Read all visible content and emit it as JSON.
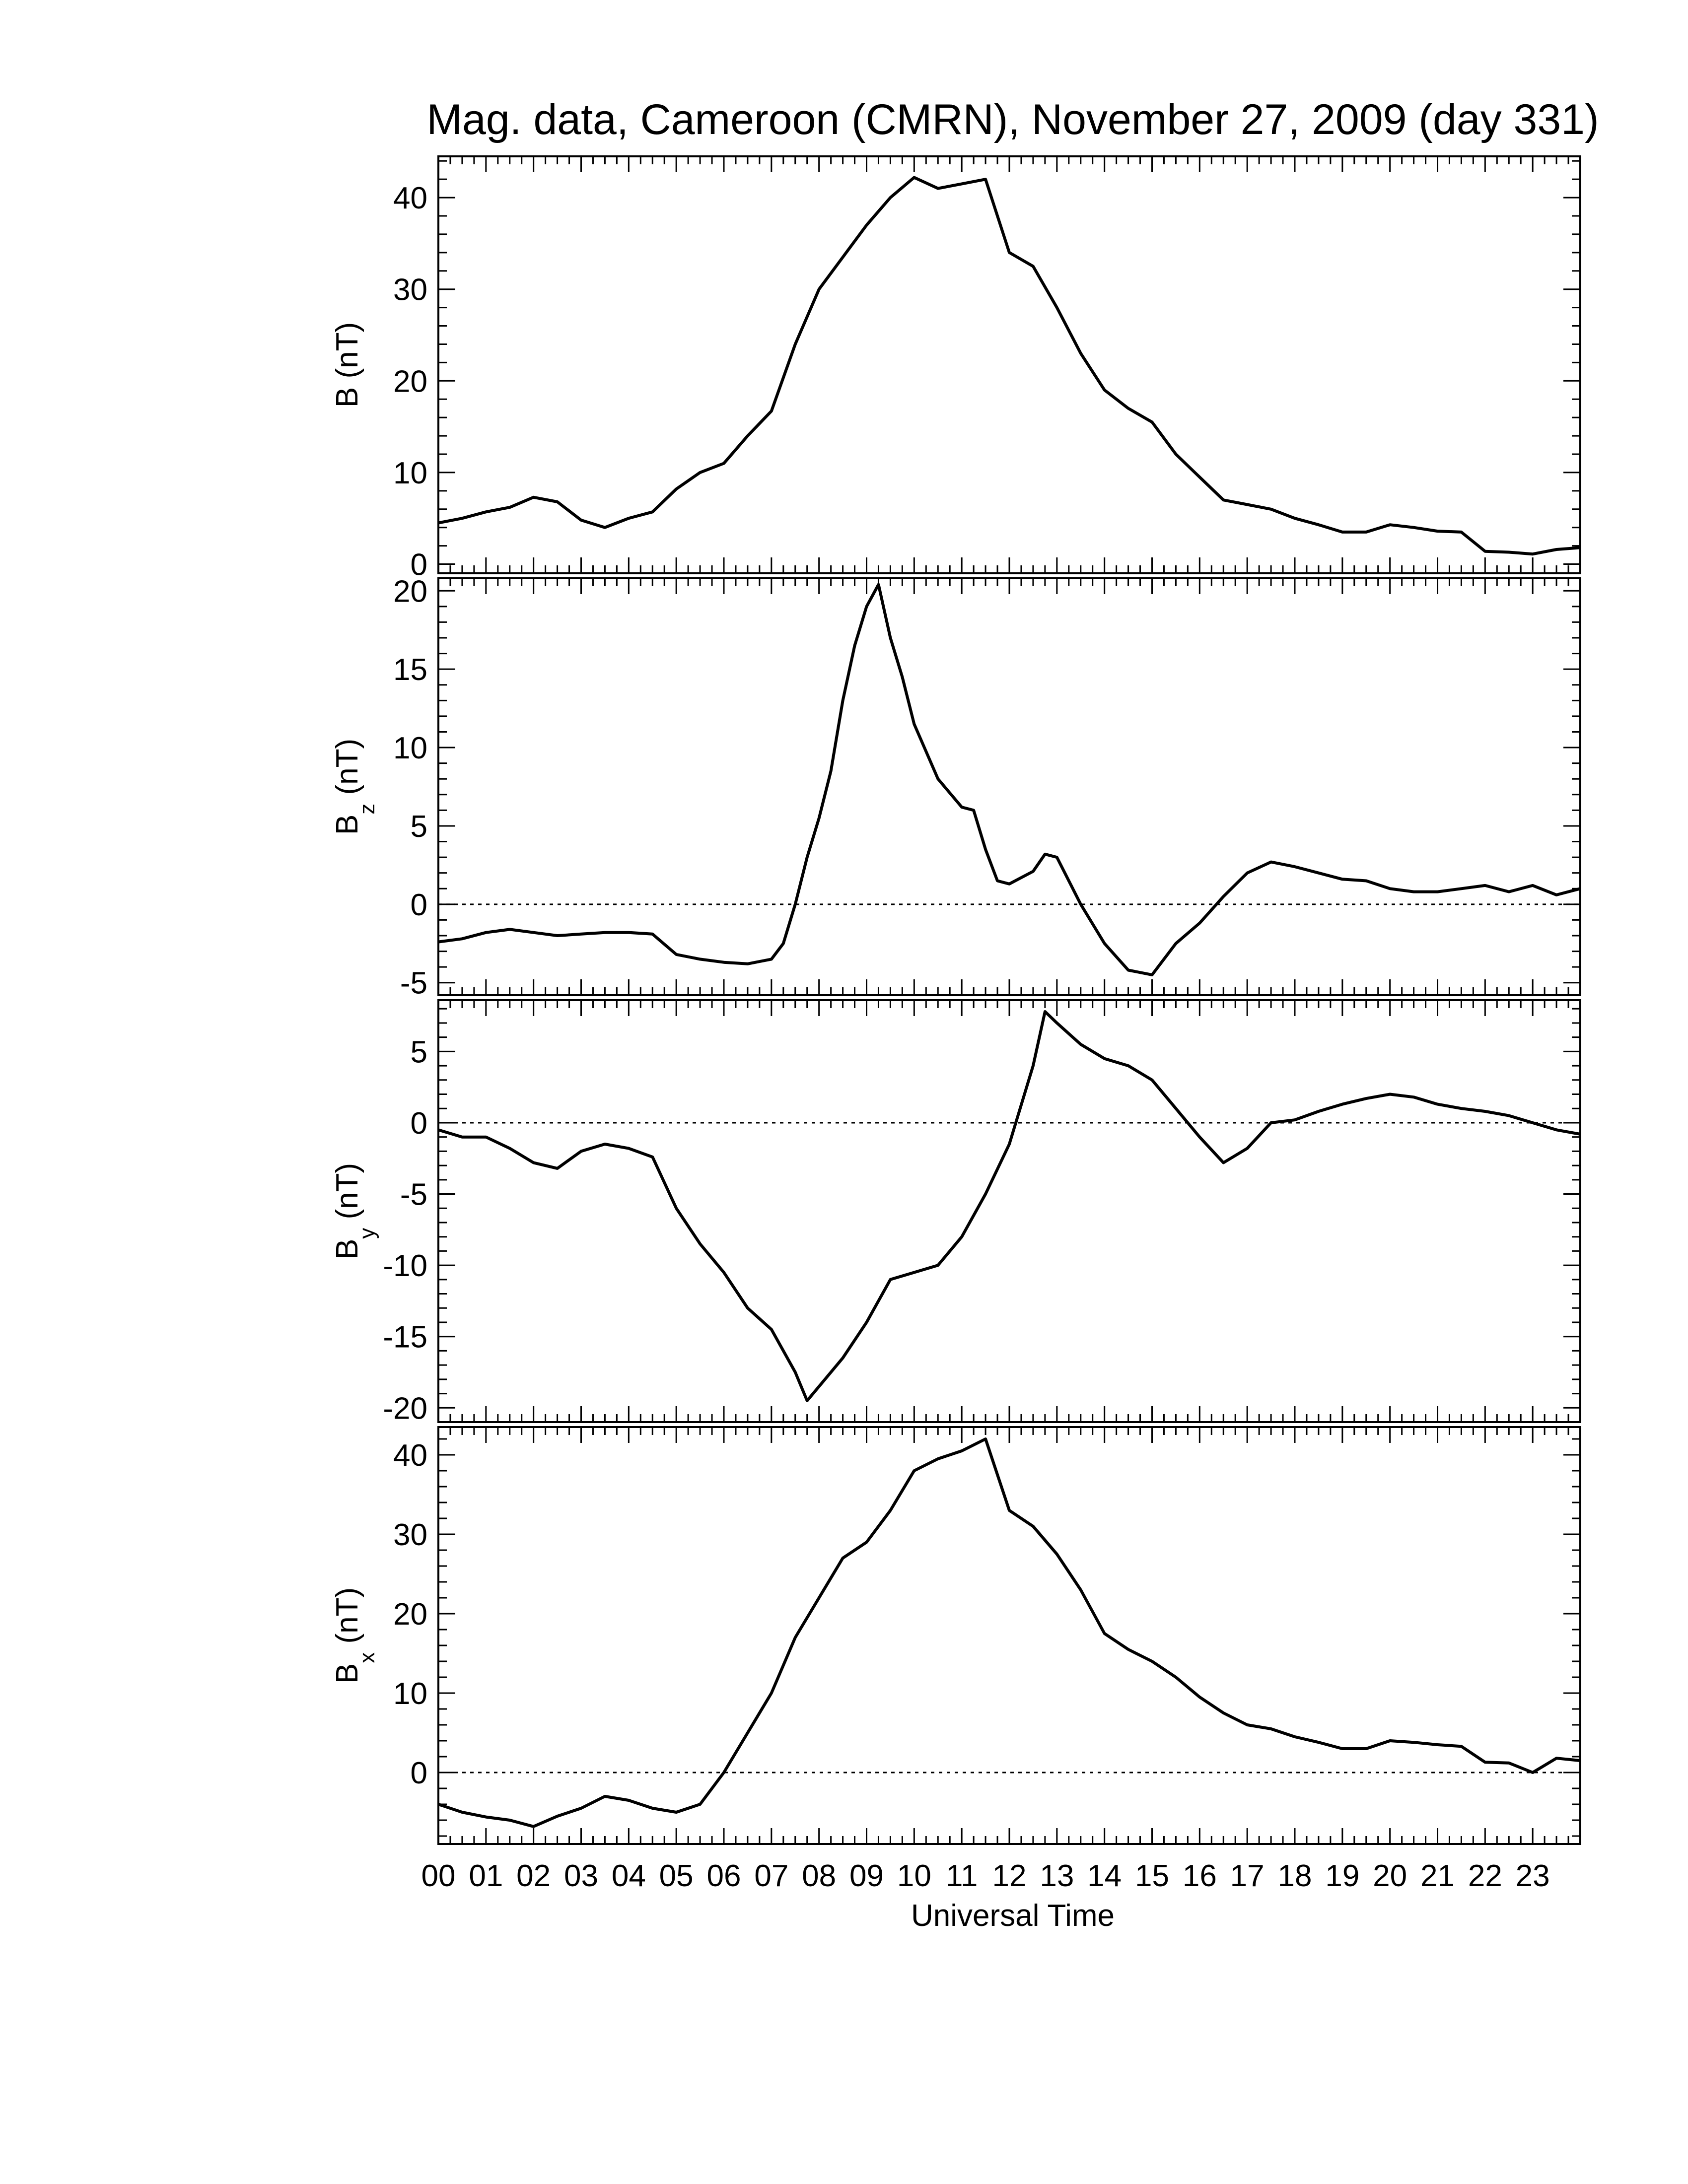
{
  "title": "Mag. data, Cameroon (CMRN), November 27, 2009 (day 331)",
  "xlabel": "Universal Time",
  "chart_data": {
    "type": "line",
    "title": "Mag. data, Cameroon (CMRN), November 27, 2009 (day 331)",
    "xlabel": "Universal Time",
    "x_unit": "hours UT",
    "xlim": [
      0,
      24
    ],
    "x_tick_labels": [
      "00",
      "01",
      "02",
      "03",
      "04",
      "05",
      "06",
      "07",
      "08",
      "09",
      "10",
      "11",
      "12",
      "13",
      "14",
      "15",
      "16",
      "17",
      "18",
      "19",
      "20",
      "21",
      "22",
      "23"
    ],
    "panels": [
      {
        "name": "B",
        "ylabel_main": "B",
        "ylabel_sub": "",
        "ylabel_unit": " (nT)",
        "ylim": [
          -1,
          44.5
        ],
        "yticks": [
          0,
          10,
          20,
          30,
          40
        ],
        "zero_line": false,
        "x": [
          0,
          0.5,
          1,
          1.5,
          2,
          2.5,
          3,
          3.5,
          4,
          4.5,
          5,
          5.5,
          6,
          6.5,
          7,
          7.5,
          8,
          8.5,
          9,
          9.5,
          10,
          10.5,
          11,
          11.5,
          12,
          12.5,
          13,
          13.5,
          14,
          14.5,
          15,
          15.5,
          16,
          16.5,
          17,
          17.5,
          18,
          18.5,
          19,
          19.5,
          20,
          20.5,
          21,
          21.5,
          22,
          22.5,
          23,
          23.5,
          24
        ],
        "y": [
          4.5,
          5,
          5.7,
          6.2,
          7.3,
          6.8,
          4.8,
          4,
          5,
          5.7,
          8.2,
          10,
          11,
          14,
          16.7,
          24,
          30,
          33.5,
          37,
          40,
          42.2,
          41,
          41.5,
          42,
          34,
          32.5,
          28,
          23,
          19,
          17,
          15.5,
          12,
          9.5,
          7,
          6.5,
          6,
          5,
          4.3,
          3.5,
          3.5,
          4.3,
          4,
          3.6,
          3.5,
          1.4,
          1.3,
          1.1,
          1.6,
          1.8
        ]
      },
      {
        "name": "Bz",
        "ylabel_main": "B",
        "ylabel_sub": "z",
        "ylabel_unit": " (nT)",
        "ylim": [
          -5.8,
          20.8
        ],
        "yticks": [
          -5,
          0,
          5,
          10,
          15,
          20
        ],
        "ytick_labels": [
          "-5",
          "0",
          "5",
          "10",
          "15",
          "20"
        ],
        "zero_line": true,
        "x": [
          0,
          0.5,
          1,
          1.5,
          2,
          2.5,
          3,
          3.5,
          4,
          4.5,
          5,
          5.5,
          6,
          6.5,
          7,
          7.25,
          7.5,
          7.75,
          8,
          8.25,
          8.5,
          8.75,
          9,
          9.25,
          9.5,
          9.75,
          10,
          10.5,
          11,
          11.25,
          11.5,
          11.75,
          12,
          12.5,
          12.75,
          13,
          13.5,
          14,
          14.5,
          15,
          15.5,
          16,
          16.5,
          17,
          17.5,
          18,
          18.5,
          19,
          19.5,
          20,
          20.5,
          21,
          21.5,
          22,
          22.5,
          23,
          23.5,
          24
        ],
        "y": [
          -2.4,
          -2.2,
          -1.8,
          -1.6,
          -1.8,
          -2,
          -1.9,
          -1.8,
          -1.8,
          -1.9,
          -3.2,
          -3.5,
          -3.7,
          -3.8,
          -3.5,
          -2.5,
          0,
          3,
          5.5,
          8.5,
          13,
          16.5,
          19,
          20.4,
          17,
          14.5,
          11.5,
          8,
          6.2,
          6,
          3.5,
          1.5,
          1.3,
          2.1,
          3.2,
          3,
          0,
          -2.5,
          -4.2,
          -4.5,
          -2.5,
          -1.2,
          0.5,
          2,
          2.7,
          2.4,
          2,
          1.6,
          1.5,
          1,
          0.8,
          0.8,
          1,
          1.2,
          0.8,
          1.2,
          0.6,
          1
        ]
      },
      {
        "name": "By",
        "ylabel_main": "B",
        "ylabel_sub": "y",
        "ylabel_unit": " (nT)",
        "ylim": [
          -21,
          8.6
        ],
        "yticks": [
          -20,
          -15,
          -10,
          -5,
          0,
          5
        ],
        "ytick_labels": [
          "-20",
          "-15",
          "-10",
          "-5",
          "0",
          "5"
        ],
        "zero_line": true,
        "x": [
          0,
          0.5,
          1,
          1.5,
          2,
          2.5,
          3,
          3.5,
          4,
          4.5,
          5,
          5.5,
          6,
          6.5,
          7,
          7.5,
          7.75,
          8,
          8.5,
          9,
          9.5,
          10,
          10.5,
          11,
          11.5,
          12,
          12.5,
          12.75,
          13,
          13.5,
          14,
          14.5,
          15,
          15.5,
          16,
          16.5,
          17,
          17.5,
          18,
          18.5,
          19,
          19.5,
          20,
          20.5,
          21,
          21.5,
          22,
          22.5,
          23,
          23.5,
          24
        ],
        "y": [
          -0.5,
          -1,
          -1,
          -1.8,
          -2.8,
          -3.2,
          -2,
          -1.5,
          -1.8,
          -2.4,
          -6,
          -8.5,
          -10.5,
          -13,
          -14.5,
          -17.5,
          -19.5,
          -18.5,
          -16.5,
          -14,
          -11,
          -10.5,
          -10,
          -8,
          -5,
          -1.5,
          4,
          7.8,
          7,
          5.5,
          4.5,
          4,
          3,
          1,
          -1,
          -2.8,
          -1.8,
          0,
          0.2,
          0.8,
          1.3,
          1.7,
          2,
          1.8,
          1.3,
          1,
          0.8,
          0.5,
          0,
          -0.5,
          -0.8
        ]
      },
      {
        "name": "Bx",
        "ylabel_main": "B",
        "ylabel_sub": "x",
        "ylabel_unit": " (nT)",
        "ylim": [
          -9,
          43.5
        ],
        "yticks": [
          0,
          10,
          20,
          30,
          40
        ],
        "zero_line": true,
        "x": [
          0,
          0.5,
          1,
          1.5,
          2,
          2.5,
          3,
          3.5,
          4,
          4.5,
          5,
          5.5,
          6,
          6.5,
          7,
          7.5,
          8,
          8.5,
          9,
          9.5,
          10,
          10.5,
          11,
          11.5,
          12,
          12.5,
          13,
          13.5,
          14,
          14.5,
          15,
          15.5,
          16,
          16.5,
          17,
          17.5,
          18,
          18.5,
          19,
          19.5,
          20,
          20.5,
          21,
          21.5,
          22,
          22.5,
          23,
          23.5,
          24
        ],
        "y": [
          -4,
          -5,
          -5.6,
          -6,
          -6.8,
          -5.5,
          -4.5,
          -3,
          -3.5,
          -4.5,
          -5,
          -4,
          0,
          5,
          10,
          17,
          22,
          27,
          29,
          33,
          38,
          39.5,
          40.5,
          42,
          33,
          31,
          27.5,
          23,
          17.5,
          15.5,
          14,
          12,
          9.5,
          7.5,
          6,
          5.5,
          4.5,
          3.8,
          3,
          3,
          4,
          3.8,
          3.5,
          3.3,
          1.3,
          1.2,
          0,
          1.8,
          1.5
        ]
      }
    ]
  }
}
